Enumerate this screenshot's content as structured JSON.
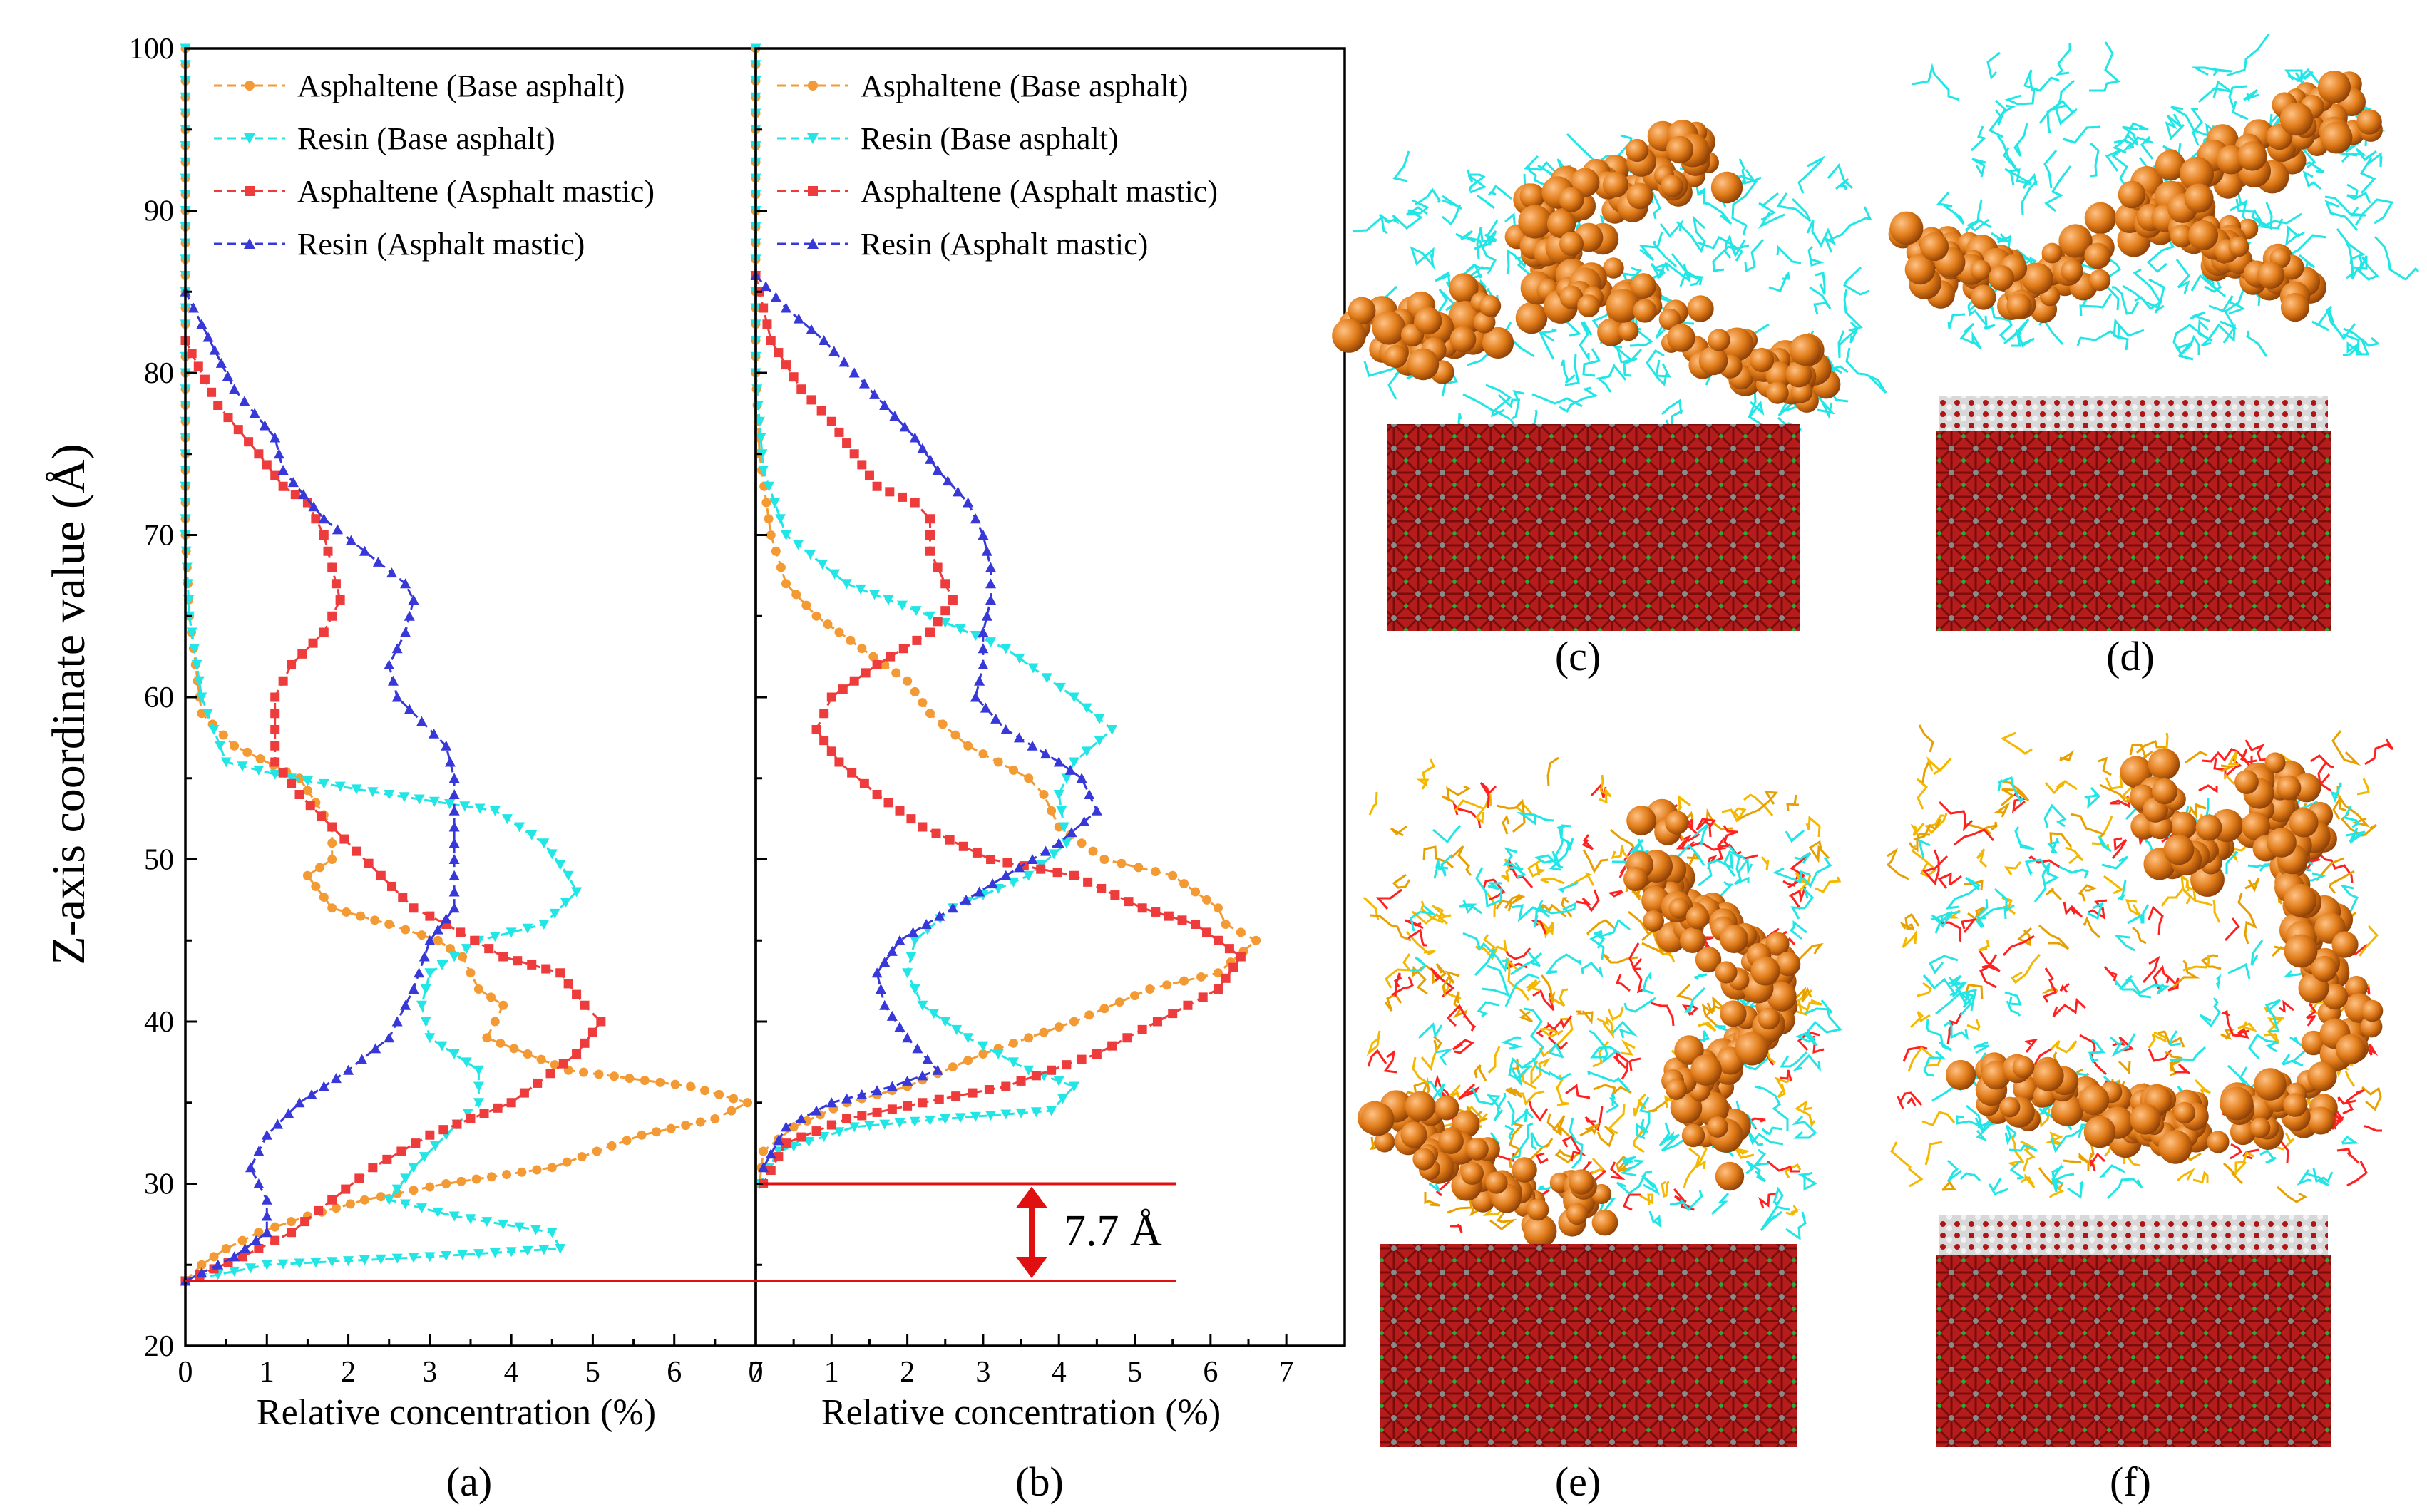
{
  "figure": {
    "shared_ylabel": "Z-axis coordinate value (Å)",
    "panel_labels": {
      "a": "(a)",
      "b": "(b)",
      "c": "(c)",
      "d": "(d)",
      "e": "(e)",
      "f": "(f)"
    },
    "annotation_gap": "7.7 Å"
  },
  "colors": {
    "asphaltene_base": "#f39a34",
    "resin_base": "#22e6e6",
    "asphaltene_mastic": "#ee3b3b",
    "resin_mastic": "#3838d8",
    "annotation": "#e01010",
    "mineral": "#b01818",
    "asphaltene_sphere": "#d86d14"
  },
  "chart_data": [
    {
      "panel": "a",
      "type": "line",
      "xlabel": "Relative concentration (%)",
      "ylabel": "Z-axis coordinate value (Å)",
      "xlim": [
        0,
        7
      ],
      "ylim": [
        20,
        100
      ],
      "xticks": [
        "0",
        "1",
        "2",
        "3",
        "4",
        "5",
        "6",
        "7"
      ],
      "yticks": [
        "20",
        "30",
        "40",
        "50",
        "60",
        "70",
        "80",
        "90",
        "100"
      ],
      "legend_position": "top-right",
      "series": [
        {
          "name": "Asphaltene (Base asphalt)",
          "color_key": "asphaltene_base",
          "marker": "circle",
          "points": [
            [
              0,
              100
            ],
            [
              0,
              90
            ],
            [
              0,
              80
            ],
            [
              0,
              70
            ],
            [
              0.05,
              65
            ],
            [
              0.2,
              59
            ],
            [
              0.6,
              57
            ],
            [
              1.4,
              55
            ],
            [
              1.8,
              52
            ],
            [
              1.8,
              50
            ],
            [
              1.5,
              49
            ],
            [
              1.8,
              47
            ],
            [
              2.5,
              46
            ],
            [
              3.1,
              45
            ],
            [
              3.4,
              44
            ],
            [
              3.6,
              42
            ],
            [
              3.9,
              41
            ],
            [
              3.8,
              40
            ],
            [
              3.7,
              39
            ],
            [
              4.7,
              37
            ],
            [
              6.2,
              36
            ],
            [
              6.9,
              35
            ],
            [
              6.5,
              34
            ],
            [
              5.6,
              33
            ],
            [
              4.5,
              31
            ],
            [
              3.2,
              30
            ],
            [
              2.2,
              29
            ],
            [
              1.5,
              28
            ],
            [
              0.9,
              27
            ],
            [
              0.5,
              26
            ],
            [
              0.2,
              25
            ],
            [
              0,
              24
            ]
          ]
        },
        {
          "name": "Resin (Base asphalt)",
          "color_key": "resin_base",
          "marker": "triangle-down",
          "points": [
            [
              0,
              100
            ],
            [
              0,
              90
            ],
            [
              0,
              80
            ],
            [
              0,
              70
            ],
            [
              0.05,
              65
            ],
            [
              0.2,
              60
            ],
            [
              0.5,
              56
            ],
            [
              1.3,
              55
            ],
            [
              2.5,
              54
            ],
            [
              3.8,
              53
            ],
            [
              4.4,
              51
            ],
            [
              4.7,
              49
            ],
            [
              4.8,
              48
            ],
            [
              4.4,
              46
            ],
            [
              3.6,
              45
            ],
            [
              3.0,
              43
            ],
            [
              2.9,
              41
            ],
            [
              3.0,
              39
            ],
            [
              3.6,
              37
            ],
            [
              3.6,
              35
            ],
            [
              3.2,
              33
            ],
            [
              2.8,
              31
            ],
            [
              2.5,
              29
            ],
            [
              3.3,
              28
            ],
            [
              4.5,
              27
            ],
            [
              4.6,
              26
            ],
            [
              3.0,
              25.5
            ],
            [
              1.0,
              25
            ],
            [
              0,
              24
            ]
          ]
        },
        {
          "name": "Asphaltene (Asphalt mastic)",
          "color_key": "asphaltene_mastic",
          "marker": "square",
          "points": [
            [
              0,
              82
            ],
            [
              0.4,
              78
            ],
            [
              0.9,
              75
            ],
            [
              1.2,
              73
            ],
            [
              1.5,
              72
            ],
            [
              1.7,
              70
            ],
            [
              1.8,
              68
            ],
            [
              1.9,
              66
            ],
            [
              1.7,
              64
            ],
            [
              1.3,
              62
            ],
            [
              1.1,
              60
            ],
            [
              1.1,
              56
            ],
            [
              1.4,
              54
            ],
            [
              1.8,
              52
            ],
            [
              2.4,
              49
            ],
            [
              2.8,
              47
            ],
            [
              3.2,
              46
            ],
            [
              3.9,
              44
            ],
            [
              4.6,
              43
            ],
            [
              4.9,
              41
            ],
            [
              5.1,
              40
            ],
            [
              4.8,
              38
            ],
            [
              4.0,
              35
            ],
            [
              3.0,
              33
            ],
            [
              2.3,
              31
            ],
            [
              1.8,
              29
            ],
            [
              1.3,
              27
            ],
            [
              0.7,
              25.5
            ],
            [
              0,
              24
            ]
          ]
        },
        {
          "name": "Resin (Asphalt mastic)",
          "color_key": "resin_mastic",
          "marker": "triangle-up",
          "points": [
            [
              0,
              85
            ],
            [
              0.2,
              83
            ],
            [
              0.6,
              79
            ],
            [
              1.1,
              76
            ],
            [
              1.2,
              74
            ],
            [
              1.7,
              71
            ],
            [
              2.2,
              69
            ],
            [
              2.7,
              67
            ],
            [
              2.8,
              66
            ],
            [
              2.7,
              64
            ],
            [
              2.5,
              62
            ],
            [
              2.6,
              60
            ],
            [
              3.2,
              57
            ],
            [
              3.3,
              55
            ],
            [
              3.3,
              50
            ],
            [
              3.3,
              47
            ],
            [
              3.0,
              45
            ],
            [
              2.8,
              42
            ],
            [
              2.5,
              39
            ],
            [
              2.0,
              37
            ],
            [
              1.4,
              35
            ],
            [
              1.0,
              33
            ],
            [
              0.8,
              31
            ],
            [
              1.0,
              29
            ],
            [
              1.0,
              27
            ],
            [
              0.6,
              25.5
            ],
            [
              0,
              24
            ]
          ]
        }
      ]
    },
    {
      "panel": "b",
      "type": "line",
      "xlabel": "Relative concentration (%)",
      "xlim": [
        0,
        7
      ],
      "ylim": [
        20,
        100
      ],
      "xticks": [
        "0",
        "1",
        "2",
        "3",
        "4",
        "5",
        "6",
        "7"
      ],
      "legend_position": "top-right",
      "series": [
        {
          "name": "Asphaltene (Base asphalt)",
          "color_key": "asphaltene_base",
          "marker": "circle",
          "points": [
            [
              0,
              100
            ],
            [
              0,
              90
            ],
            [
              0,
              80
            ],
            [
              0.05,
              75
            ],
            [
              0.2,
              70
            ],
            [
              0.4,
              67
            ],
            [
              0.8,
              65
            ],
            [
              1.4,
              63
            ],
            [
              2.0,
              61
            ],
            [
              2.3,
              59
            ],
            [
              2.8,
              57
            ],
            [
              3.6,
              55
            ],
            [
              3.8,
              54
            ],
            [
              4.0,
              52
            ],
            [
              4.6,
              50
            ],
            [
              5.5,
              49
            ],
            [
              6.1,
              47
            ],
            [
              6.2,
              46
            ],
            [
              6.6,
              45
            ],
            [
              6.1,
              43
            ],
            [
              5.2,
              42
            ],
            [
              4.2,
              40
            ],
            [
              3.0,
              38
            ],
            [
              2.0,
              36
            ],
            [
              1.2,
              35
            ],
            [
              0.5,
              33.5
            ],
            [
              0.1,
              32
            ],
            [
              0.05,
              30
            ]
          ]
        },
        {
          "name": "Resin (Base asphalt)",
          "color_key": "resin_base",
          "marker": "triangle-down",
          "points": [
            [
              0,
              100
            ],
            [
              0,
              90
            ],
            [
              0,
              80
            ],
            [
              0.1,
              74
            ],
            [
              0.4,
              70
            ],
            [
              1.2,
              67
            ],
            [
              2.3,
              65
            ],
            [
              3.3,
              63
            ],
            [
              4.2,
              60
            ],
            [
              4.7,
              58
            ],
            [
              4.2,
              56
            ],
            [
              4.0,
              54
            ],
            [
              4.1,
              51
            ],
            [
              3.6,
              49
            ],
            [
              2.6,
              47
            ],
            [
              2.1,
              45
            ],
            [
              2.0,
              43
            ],
            [
              2.2,
              41
            ],
            [
              2.8,
              39
            ],
            [
              3.6,
              37
            ],
            [
              4.2,
              36
            ],
            [
              3.9,
              34.5
            ],
            [
              2.5,
              34
            ],
            [
              1.3,
              33.5
            ],
            [
              0.3,
              32
            ],
            [
              0.05,
              30
            ]
          ]
        },
        {
          "name": "Asphaltene (Asphalt mastic)",
          "color_key": "asphaltene_mastic",
          "marker": "square",
          "points": [
            [
              0,
              86
            ],
            [
              0.2,
              82
            ],
            [
              0.6,
              79
            ],
            [
              1.0,
              77
            ],
            [
              1.3,
              75
            ],
            [
              1.6,
              73
            ],
            [
              2.1,
              72
            ],
            [
              2.3,
              71
            ],
            [
              2.3,
              69
            ],
            [
              2.5,
              67
            ],
            [
              2.6,
              66
            ],
            [
              2.3,
              64
            ],
            [
              1.6,
              62
            ],
            [
              1.0,
              60
            ],
            [
              0.8,
              58
            ],
            [
              1.1,
              56
            ],
            [
              1.6,
              54
            ],
            [
              2.2,
              52
            ],
            [
              3.1,
              50
            ],
            [
              4.2,
              49
            ],
            [
              5.1,
              47
            ],
            [
              5.8,
              46
            ],
            [
              6.4,
              44
            ],
            [
              6.1,
              42
            ],
            [
              5.3,
              40
            ],
            [
              4.5,
              38
            ],
            [
              3.3,
              36
            ],
            [
              2.2,
              35
            ],
            [
              1.2,
              34
            ],
            [
              0.4,
              32.5
            ],
            [
              0.1,
              30
            ]
          ]
        },
        {
          "name": "Resin (Asphalt mastic)",
          "color_key": "resin_mastic",
          "marker": "triangle-up",
          "points": [
            [
              0,
              86
            ],
            [
              0.4,
              84
            ],
            [
              0.9,
              82
            ],
            [
              1.3,
              80
            ],
            [
              1.7,
              78
            ],
            [
              2.1,
              76
            ],
            [
              2.4,
              74
            ],
            [
              2.8,
              72
            ],
            [
              3.0,
              70
            ],
            [
              3.1,
              68
            ],
            [
              3.1,
              66
            ],
            [
              3.0,
              64
            ],
            [
              3.0,
              62
            ],
            [
              2.9,
              60
            ],
            [
              3.3,
              58
            ],
            [
              4.0,
              56
            ],
            [
              4.3,
              55
            ],
            [
              4.5,
              53
            ],
            [
              4.0,
              51
            ],
            [
              3.3,
              49
            ],
            [
              2.6,
              47
            ],
            [
              1.9,
              45
            ],
            [
              1.6,
              43
            ],
            [
              1.7,
              41
            ],
            [
              2.0,
              39
            ],
            [
              2.4,
              37
            ],
            [
              1.8,
              36
            ],
            [
              1.0,
              35
            ],
            [
              0.4,
              33.5
            ],
            [
              0.1,
              31
            ]
          ]
        }
      ]
    }
  ]
}
